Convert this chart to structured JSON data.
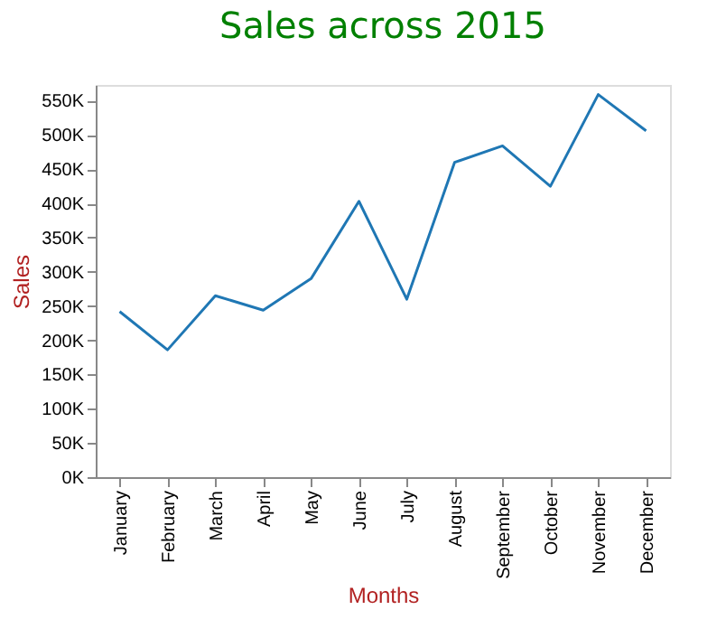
{
  "chart_data": {
    "type": "line",
    "title": "Sales across 2015",
    "xlabel": "Months",
    "ylabel": "Sales",
    "categories": [
      "January",
      "February",
      "March",
      "April",
      "May",
      "June",
      "July",
      "August",
      "September",
      "October",
      "November",
      "December"
    ],
    "series": [
      {
        "color": "#1f77b4",
        "values": [
          242000,
          186000,
          265000,
          244000,
          290000,
          403000,
          260000,
          460000,
          484000,
          425000,
          559000,
          506000
        ]
      }
    ],
    "ylim": [
      0,
      573000
    ],
    "yticks": [
      {
        "value": 0,
        "label": "0K"
      },
      {
        "value": 50000,
        "label": "50K"
      },
      {
        "value": 100000,
        "label": "100K"
      },
      {
        "value": 150000,
        "label": "150K"
      },
      {
        "value": 200000,
        "label": "200K"
      },
      {
        "value": 250000,
        "label": "250K"
      },
      {
        "value": 300000,
        "label": "300K"
      },
      {
        "value": 350000,
        "label": "350K"
      },
      {
        "value": 400000,
        "label": "400K"
      },
      {
        "value": 450000,
        "label": "450K"
      },
      {
        "value": 500000,
        "label": "500K"
      },
      {
        "value": 550000,
        "label": "550K"
      }
    ],
    "grid": false,
    "marker": "none",
    "line_style": "solid"
  }
}
